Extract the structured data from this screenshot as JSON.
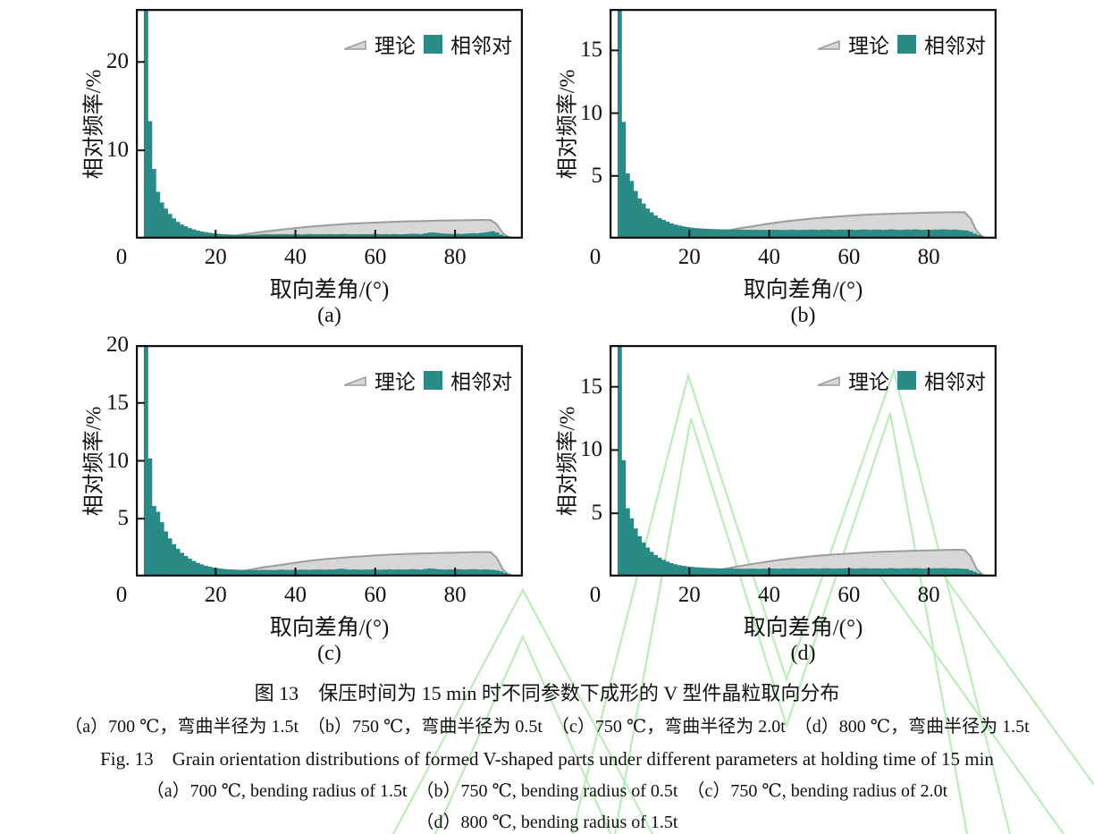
{
  "figure": {
    "caption_cn_title": "图 13　保压时间为 15 min 时不同参数下成形的 V 型件晶粒取向分布",
    "caption_cn_sub": "（a）700 ℃，弯曲半径为 1.5t　（b）750 ℃，弯曲半径为 0.5t　（c）750 ℃，弯曲半径为 2.0t　（d）800 ℃，弯曲半径为 1.5t",
    "caption_en_title": "Fig. 13　Grain orientation distributions of formed V-shaped parts under different parameters at holding time of 15 min",
    "caption_en_sub1": "（a）700 ℃, bending radius of 1.5t　（b）750 ℃, bending radius of 0.5t　（c）750 ℃, bending radius of 2.0t",
    "caption_en_sub2": "（d）800 ℃, bending radius of 1.5t"
  },
  "legend": {
    "theory": "理论",
    "adjacent": "相邻对"
  },
  "colors": {
    "bar": "#2a8a86",
    "theory_fill": "#d7d7d7",
    "theory_stroke": "#9c9c9c",
    "axis": "#111111",
    "watermark": "#a5e6a5"
  },
  "chart_data": {
    "type": "bar",
    "xlabel": "取向差角/(°)",
    "ylabel": "相对频率/%",
    "x_ticks": [
      0,
      20,
      40,
      60,
      80
    ],
    "xlim": [
      0,
      97
    ],
    "bin_start": 0,
    "bin_width": 1,
    "grid": false,
    "legend_position": "top-right-inside",
    "theory_series": {
      "name": "理论",
      "points": [
        [
          20,
          0
        ],
        [
          24,
          0.3
        ],
        [
          28,
          0.55
        ],
        [
          32,
          0.8
        ],
        [
          36,
          1.0
        ],
        [
          40,
          1.2
        ],
        [
          44,
          1.38
        ],
        [
          48,
          1.52
        ],
        [
          52,
          1.64
        ],
        [
          56,
          1.74
        ],
        [
          60,
          1.82
        ],
        [
          64,
          1.9
        ],
        [
          68,
          1.96
        ],
        [
          72,
          2.0
        ],
        [
          76,
          2.04
        ],
        [
          80,
          2.07
        ],
        [
          84,
          2.1
        ],
        [
          87,
          2.12
        ],
        [
          89,
          2.1
        ],
        [
          90.5,
          1.6
        ],
        [
          92,
          0.6
        ],
        [
          93.5,
          0.15
        ],
        [
          95,
          0
        ]
      ]
    },
    "subplots": [
      {
        "label": "(a)",
        "condition_cn": "700 ℃，弯曲半径为 1.5t",
        "ylim": [
          0,
          26
        ],
        "y_ticks": [
          10,
          20
        ],
        "series_name": "相邻对",
        "values": [
          0,
          0,
          26,
          13.3,
          7.9,
          5.3,
          4.1,
          3.4,
          2.8,
          2.3,
          1.9,
          1.6,
          1.4,
          1.2,
          1.05,
          0.92,
          0.82,
          0.74,
          0.67,
          0.61,
          0.56,
          0.52,
          0.49,
          0.47,
          0.45,
          0.44,
          0.43,
          0.42,
          0.42,
          0.43,
          0.46,
          0.5,
          0.52,
          0.5,
          0.48,
          0.5,
          0.52,
          0.5,
          0.49,
          0.51,
          0.5,
          0.48,
          0.5,
          0.53,
          0.5,
          0.49,
          0.51,
          0.5,
          0.52,
          0.5,
          0.49,
          0.51,
          0.53,
          0.5,
          0.49,
          0.5,
          0.52,
          0.5,
          0.51,
          0.53,
          0.51,
          0.5,
          0.52,
          0.5,
          0.53,
          0.51,
          0.5,
          0.52,
          0.54,
          0.56,
          0.54,
          0.52,
          0.6,
          0.68,
          0.7,
          0.66,
          0.6,
          0.57,
          0.55,
          0.53,
          0.55,
          0.53,
          0.56,
          0.6,
          0.62,
          0.6,
          0.65,
          0.7,
          0.78,
          0.85,
          0.7,
          0.45,
          0.3,
          0.25,
          0.2,
          0.15
        ]
      },
      {
        "label": "(b)",
        "condition_cn": "750 ℃，弯曲半径为 0.5t",
        "ylim": [
          0,
          18.3
        ],
        "y_ticks": [
          5,
          10,
          15
        ],
        "series_name": "相邻对",
        "values": [
          0,
          0,
          18.3,
          9.3,
          5.2,
          4.6,
          3.8,
          3.2,
          2.8,
          2.4,
          2.1,
          1.85,
          1.65,
          1.5,
          1.35,
          1.22,
          1.12,
          1.05,
          0.98,
          0.93,
          0.88,
          0.85,
          0.82,
          0.8,
          0.78,
          0.77,
          0.76,
          0.75,
          0.74,
          0.74,
          0.73,
          0.73,
          0.72,
          0.72,
          0.71,
          0.71,
          0.7,
          0.7,
          0.7,
          0.69,
          0.7,
          0.71,
          0.7,
          0.69,
          0.7,
          0.72,
          0.7,
          0.69,
          0.71,
          0.7,
          0.72,
          0.71,
          0.7,
          0.72,
          0.73,
          0.71,
          0.7,
          0.72,
          0.71,
          0.73,
          0.72,
          0.7,
          0.71,
          0.73,
          0.72,
          0.7,
          0.72,
          0.71,
          0.7,
          0.72,
          0.74,
          0.72,
          0.7,
          0.71,
          0.73,
          0.72,
          0.74,
          0.72,
          0.7,
          0.72,
          0.71,
          0.73,
          0.72,
          0.74,
          0.73,
          0.71,
          0.72,
          0.7,
          0.68,
          0.65,
          0.55,
          0.4,
          0.28,
          0.18,
          0.12,
          0.08
        ]
      },
      {
        "label": "(c)",
        "condition_cn": "750 ℃，弯曲半径为 2.0t",
        "ylim": [
          0,
          20
        ],
        "y_ticks": [
          5,
          10,
          15,
          20
        ],
        "series_name": "相邻对",
        "values": [
          0,
          0,
          20,
          10.2,
          6.1,
          5.6,
          4.7,
          3.9,
          3.3,
          2.8,
          2.4,
          2.05,
          1.78,
          1.55,
          1.35,
          1.18,
          1.05,
          0.94,
          0.85,
          0.78,
          0.72,
          0.68,
          0.64,
          0.62,
          0.6,
          0.59,
          0.58,
          0.57,
          0.57,
          0.56,
          0.56,
          0.57,
          0.58,
          0.57,
          0.56,
          0.58,
          0.6,
          0.58,
          0.57,
          0.59,
          0.58,
          0.6,
          0.59,
          0.58,
          0.6,
          0.62,
          0.6,
          0.59,
          0.61,
          0.6,
          0.65,
          0.68,
          0.64,
          0.6,
          0.62,
          0.6,
          0.59,
          0.61,
          0.6,
          0.62,
          0.6,
          0.59,
          0.61,
          0.63,
          0.6,
          0.62,
          0.61,
          0.6,
          0.62,
          0.64,
          0.62,
          0.6,
          0.65,
          0.7,
          0.68,
          0.64,
          0.62,
          0.6,
          0.62,
          0.61,
          0.63,
          0.62,
          0.6,
          0.62,
          0.64,
          0.62,
          0.6,
          0.62,
          0.6,
          0.58,
          0.55,
          0.45,
          0.32,
          0.22,
          0.15,
          0.1
        ]
      },
      {
        "label": "(d)",
        "condition_cn": "800 ℃，弯曲半径为 1.5t",
        "ylim": [
          0,
          18.3
        ],
        "y_ticks": [
          5,
          10,
          15
        ],
        "series_name": "相邻对",
        "values": [
          0,
          0,
          18.3,
          9.2,
          5.4,
          4.6,
          3.8,
          3.2,
          2.7,
          2.3,
          1.95,
          1.7,
          1.5,
          1.32,
          1.18,
          1.06,
          0.97,
          0.9,
          0.85,
          0.8,
          0.77,
          0.74,
          0.72,
          0.7,
          0.68,
          0.67,
          0.66,
          0.65,
          0.65,
          0.64,
          0.64,
          0.63,
          0.63,
          0.62,
          0.62,
          0.63,
          0.62,
          0.61,
          0.63,
          0.62,
          0.64,
          0.63,
          0.62,
          0.64,
          0.63,
          0.65,
          0.64,
          0.62,
          0.64,
          0.63,
          0.65,
          0.64,
          0.63,
          0.65,
          0.66,
          0.64,
          0.63,
          0.65,
          0.64,
          0.66,
          0.65,
          0.63,
          0.64,
          0.66,
          0.65,
          0.63,
          0.65,
          0.64,
          0.63,
          0.65,
          0.67,
          0.65,
          0.63,
          0.64,
          0.66,
          0.65,
          0.67,
          0.65,
          0.63,
          0.65,
          0.64,
          0.66,
          0.65,
          0.67,
          0.66,
          0.64,
          0.65,
          0.63,
          0.62,
          0.6,
          0.5,
          0.38,
          0.26,
          0.17,
          0.11,
          0.07
        ]
      }
    ]
  }
}
